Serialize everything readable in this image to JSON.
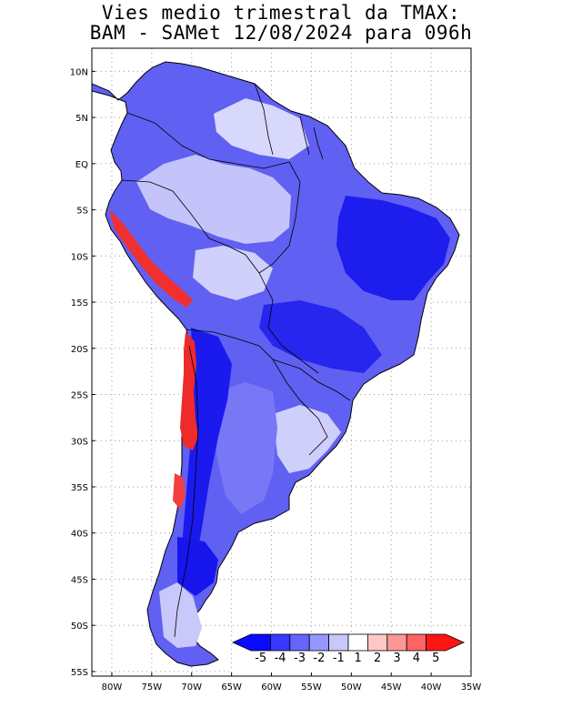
{
  "title": {
    "line1": "Vies medio trimestral da TMAX:",
    "line2": "BAM - SAMet 12/08/2024  para 096h"
  },
  "map": {
    "lat_ticks": [
      "10N",
      "5N",
      "EQ",
      "5S",
      "10S",
      "15S",
      "20S",
      "25S",
      "30S",
      "35S",
      "40S",
      "45S",
      "50S",
      "55S"
    ],
    "lon_ticks": [
      "80W",
      "75W",
      "70W",
      "65W",
      "60W",
      "55W",
      "50W",
      "45W",
      "40W",
      "35W"
    ],
    "extent": {
      "lon_min": -82.5,
      "lon_max": -35,
      "lat_min": -55.5,
      "lat_max": 12.5
    },
    "grid": "dotted"
  },
  "colorbar": {
    "labels": [
      "-5",
      "-4",
      "-3",
      "-2",
      "-1",
      "1",
      "2",
      "3",
      "4",
      "5"
    ],
    "colors": [
      "#0a0aff",
      "#3838ff",
      "#6464ff",
      "#9696ff",
      "#c8c8ff",
      "#ffffff",
      "#ffc8c8",
      "#ff9696",
      "#ff6464",
      "#ff1414"
    ]
  },
  "shading_colors": {
    "very_negative": "#1f1fef",
    "negative": "#4b4bf5",
    "moderate": "#7b7bf7",
    "weak": "#b4b4fb",
    "faint": "#dcdcfd",
    "positive": "#f03030"
  }
}
